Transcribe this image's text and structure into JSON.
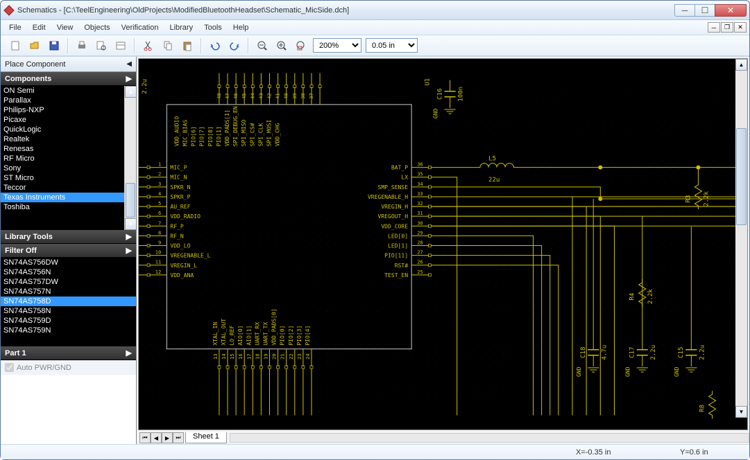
{
  "window": {
    "title": "Schematics - [C:\\TeelEngineering\\OldProjects\\ModifiedBluetoothHeadset\\Schematic_MicSide.dch]"
  },
  "menu": {
    "items": [
      "File",
      "Edit",
      "View",
      "Objects",
      "Verification",
      "Library",
      "Tools",
      "Help"
    ]
  },
  "toolbar": {
    "zoom_value": "200%",
    "grid_value": "0.05 in"
  },
  "panel": {
    "place_component": "Place Component",
    "components_hdr": "Components",
    "library_tools": "Library Tools",
    "filter_off": "Filter Off",
    "part_hdr": "Part 1",
    "auto_pwr_label": "Auto PWR/GND",
    "manufacturers": [
      "ON Semi",
      "Parallax",
      "Philips-NXP",
      "Picaxe",
      "QuickLogic",
      "Realtek",
      "Renesas",
      "RF Micro",
      "Sony",
      "ST Micro",
      "Teccor",
      "Texas Instruments",
      "Toshiba"
    ],
    "manufacturers_selected": 11,
    "parts": [
      "SN74AS756DW",
      "SN74AS756N",
      "SN74AS757DW",
      "SN74AS757N",
      "SN74AS758D",
      "SN74AS758N",
      "SN74AS759D",
      "SN74AS759N"
    ],
    "parts_selected": 4
  },
  "sheet": {
    "label": "Sheet 1"
  },
  "status": {
    "x": "X=-0.35 in",
    "y": "Y=0.6 in"
  },
  "ic": {
    "ref": "U1",
    "left_pins": [
      {
        "num": "1",
        "name": "MIC_P"
      },
      {
        "num": "2",
        "name": "MIC_N"
      },
      {
        "num": "3",
        "name": "SPKR_N"
      },
      {
        "num": "4",
        "name": "SPKR_P"
      },
      {
        "num": "5",
        "name": "AU_REF"
      },
      {
        "num": "6",
        "name": "VDD_RADIO"
      },
      {
        "num": "7",
        "name": "RF_P"
      },
      {
        "num": "8",
        "name": "RF_N"
      },
      {
        "num": "9",
        "name": "VDD_LO"
      },
      {
        "num": "10",
        "name": "VREGENABLE_L"
      },
      {
        "num": "11",
        "name": "VREGIN_L"
      },
      {
        "num": "12",
        "name": "VDD_ANA"
      }
    ],
    "right_pins": [
      {
        "num": "36",
        "name": "BAT_P"
      },
      {
        "num": "35",
        "name": "LX"
      },
      {
        "num": "34",
        "name": "SMP_SENSE"
      },
      {
        "num": "33",
        "name": "VREGENABLE_H"
      },
      {
        "num": "32",
        "name": "VREGIN_H"
      },
      {
        "num": "31",
        "name": "VREGOUT_H"
      },
      {
        "num": "30",
        "name": "VDD_CORE"
      },
      {
        "num": "29",
        "name": "LED[0]"
      },
      {
        "num": "28",
        "name": "LED[1]"
      },
      {
        "num": "27",
        "name": "PIO[11]"
      },
      {
        "num": "26",
        "name": "RST#"
      },
      {
        "num": "25",
        "name": "TEST_EN"
      }
    ],
    "top_pins": [
      {
        "num": "48",
        "name": "VDD_AUDIO"
      },
      {
        "num": "47",
        "name": "MIC_BIAS"
      },
      {
        "num": "46",
        "name": "PIO[6]"
      },
      {
        "num": "45",
        "name": "PIO[7]"
      },
      {
        "num": "44",
        "name": "PIO[8]"
      },
      {
        "num": "43",
        "name": "PIO[1]"
      },
      {
        "num": "42",
        "name": "VDD_PADS[1]"
      },
      {
        "num": "41",
        "name": "SPI_DEBUG_EN"
      },
      {
        "num": "40",
        "name": "SPI_MISO"
      },
      {
        "num": "39",
        "name": "SPI_CS#"
      },
      {
        "num": "38",
        "name": "SPI_CLK"
      },
      {
        "num": "37",
        "name": "SPI_MOSI"
      },
      {
        "num": "",
        "name": "VDD_CHG"
      }
    ],
    "bottom_pins": [
      {
        "num": "13",
        "name": "XTAL_IN"
      },
      {
        "num": "14",
        "name": "XTAL_OUT"
      },
      {
        "num": "15",
        "name": "LO_REF"
      },
      {
        "num": "16",
        "name": "AIO[0]"
      },
      {
        "num": "17",
        "name": "AIO[1]"
      },
      {
        "num": "18",
        "name": "UART_RX"
      },
      {
        "num": "19",
        "name": "UART_TX"
      },
      {
        "num": "20",
        "name": "VDD_PADS[0]"
      },
      {
        "num": "21",
        "name": "PIO[0]"
      },
      {
        "num": "22",
        "name": "PIO[2]"
      },
      {
        "num": "23",
        "name": "PIO[3]"
      },
      {
        "num": "24",
        "name": "PIO[4]"
      }
    ]
  },
  "components": {
    "L5": {
      "ref": "L5",
      "val": "22u"
    },
    "C16": {
      "ref": "C16",
      "val": "100n"
    },
    "C18": {
      "ref": "C18",
      "val": "4.7u"
    },
    "C17": {
      "ref": "C17",
      "val": "2.2u"
    },
    "C15": {
      "ref": "C15",
      "val": "2.2u"
    },
    "R3": {
      "ref": "R3",
      "val": "2.2k"
    },
    "R4": {
      "ref": "R4",
      "val": "2.2k"
    },
    "R8": {
      "ref": "R8"
    },
    "gnd": "GND",
    "cap_top": "2.2u"
  },
  "colors": {
    "wire": "#ccc000",
    "pin_line": "#666600",
    "ic_border": "#cccccc",
    "grid_dot": "#333333"
  }
}
